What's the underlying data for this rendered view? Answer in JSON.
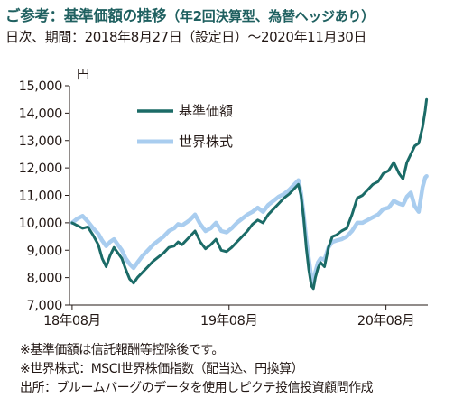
{
  "header": {
    "title": "ご参考：基準価額の推移",
    "title_paren": "（年2回決算型、為替ヘッジあり）",
    "subtitle": "日次、期間：2018年8月27日（設定日）～2020年11月30日"
  },
  "notes": [
    "※基準価額は信託報酬等控除後です。",
    "※世界株式：MSCI世界株価指数（配当込、円換算）",
    "出所：ブルームバーグのデータを使用しピクテ投信投資顧問作成"
  ],
  "colors": {
    "nav": "#1b6b67",
    "world": "#a9cdef",
    "axis": "#231815",
    "title": "#1f6060"
  },
  "chart_data": {
    "type": "line",
    "y_unit": "円",
    "ylim": [
      7000,
      15000
    ],
    "y_ticks": [
      "7,000",
      "8,000",
      "9,000",
      "10,000",
      "11,000",
      "12,000",
      "13,000",
      "14,000",
      "15,000"
    ],
    "x_ticks": [
      {
        "label": "18年08月",
        "month": 0
      },
      {
        "label": "19年08月",
        "month": 12
      },
      {
        "label": "20年08月",
        "month": 24
      }
    ],
    "x_range_months": [
      -0.2,
      27.2
    ],
    "grid": false,
    "legend": "top-left inside",
    "series": [
      {
        "name": "基準価額",
        "color": "#1b6b67",
        "points": [
          [
            0.0,
            10000
          ],
          [
            0.4,
            9900
          ],
          [
            0.8,
            9800
          ],
          [
            1.2,
            9850
          ],
          [
            1.6,
            9550
          ],
          [
            2.0,
            9200
          ],
          [
            2.3,
            8700
          ],
          [
            2.6,
            8400
          ],
          [
            2.9,
            8800
          ],
          [
            3.2,
            9100
          ],
          [
            3.5,
            8900
          ],
          [
            3.8,
            8700
          ],
          [
            4.1,
            8300
          ],
          [
            4.4,
            7950
          ],
          [
            4.7,
            7800
          ],
          [
            5.0,
            8000
          ],
          [
            5.4,
            8200
          ],
          [
            5.8,
            8400
          ],
          [
            6.2,
            8600
          ],
          [
            6.6,
            8750
          ],
          [
            7.0,
            8900
          ],
          [
            7.4,
            9100
          ],
          [
            7.8,
            9150
          ],
          [
            8.1,
            9300
          ],
          [
            8.4,
            9200
          ],
          [
            8.7,
            9350
          ],
          [
            9.0,
            9500
          ],
          [
            9.4,
            9700
          ],
          [
            9.8,
            9300
          ],
          [
            10.2,
            9050
          ],
          [
            10.6,
            9200
          ],
          [
            11.0,
            9400
          ],
          [
            11.4,
            9000
          ],
          [
            11.8,
            8950
          ],
          [
            12.2,
            9100
          ],
          [
            12.6,
            9300
          ],
          [
            13.0,
            9500
          ],
          [
            13.4,
            9700
          ],
          [
            13.8,
            9950
          ],
          [
            14.2,
            10100
          ],
          [
            14.6,
            10000
          ],
          [
            15.0,
            10300
          ],
          [
            15.4,
            10500
          ],
          [
            15.8,
            10700
          ],
          [
            16.2,
            10900
          ],
          [
            16.6,
            11050
          ],
          [
            17.0,
            11250
          ],
          [
            17.3,
            11400
          ],
          [
            17.5,
            11000
          ],
          [
            17.7,
            10200
          ],
          [
            17.9,
            9100
          ],
          [
            18.1,
            8300
          ],
          [
            18.3,
            7700
          ],
          [
            18.45,
            7600
          ],
          [
            18.6,
            8000
          ],
          [
            18.8,
            8350
          ],
          [
            19.0,
            8550
          ],
          [
            19.3,
            8400
          ],
          [
            19.6,
            9100
          ],
          [
            19.9,
            9500
          ],
          [
            20.2,
            9550
          ],
          [
            20.6,
            9700
          ],
          [
            21.0,
            9800
          ],
          [
            21.4,
            10300
          ],
          [
            21.8,
            10900
          ],
          [
            22.2,
            11000
          ],
          [
            22.6,
            11200
          ],
          [
            23.0,
            11400
          ],
          [
            23.4,
            11500
          ],
          [
            23.8,
            11800
          ],
          [
            24.2,
            11900
          ],
          [
            24.6,
            12200
          ],
          [
            25.0,
            11800
          ],
          [
            25.3,
            11600
          ],
          [
            25.6,
            12200
          ],
          [
            25.9,
            12500
          ],
          [
            26.2,
            12800
          ],
          [
            26.5,
            12900
          ],
          [
            26.8,
            13500
          ],
          [
            27.0,
            14100
          ],
          [
            27.1,
            14500
          ]
        ]
      },
      {
        "name": "世界株式",
        "color": "#a9cdef",
        "points": [
          [
            0.0,
            10000
          ],
          [
            0.4,
            10150
          ],
          [
            0.8,
            10250
          ],
          [
            1.2,
            10050
          ],
          [
            1.6,
            9800
          ],
          [
            2.0,
            9600
          ],
          [
            2.3,
            9350
          ],
          [
            2.6,
            9150
          ],
          [
            2.9,
            9300
          ],
          [
            3.2,
            9400
          ],
          [
            3.5,
            9200
          ],
          [
            3.8,
            9000
          ],
          [
            4.1,
            8700
          ],
          [
            4.4,
            8500
          ],
          [
            4.7,
            8350
          ],
          [
            5.0,
            8550
          ],
          [
            5.4,
            8800
          ],
          [
            5.8,
            9000
          ],
          [
            6.2,
            9200
          ],
          [
            6.6,
            9350
          ],
          [
            7.0,
            9500
          ],
          [
            7.4,
            9700
          ],
          [
            7.8,
            9800
          ],
          [
            8.1,
            9950
          ],
          [
            8.4,
            9900
          ],
          [
            8.7,
            10000
          ],
          [
            9.0,
            10100
          ],
          [
            9.4,
            10300
          ],
          [
            9.8,
            9950
          ],
          [
            10.2,
            9700
          ],
          [
            10.6,
            9800
          ],
          [
            11.0,
            10000
          ],
          [
            11.4,
            9700
          ],
          [
            11.8,
            9650
          ],
          [
            12.2,
            9800
          ],
          [
            12.6,
            10000
          ],
          [
            13.0,
            10150
          ],
          [
            13.4,
            10300
          ],
          [
            13.8,
            10400
          ],
          [
            14.2,
            10550
          ],
          [
            14.6,
            10400
          ],
          [
            15.0,
            10650
          ],
          [
            15.4,
            10800
          ],
          [
            15.8,
            10950
          ],
          [
            16.2,
            11050
          ],
          [
            16.6,
            11200
          ],
          [
            17.0,
            11400
          ],
          [
            17.3,
            11550
          ],
          [
            17.5,
            11100
          ],
          [
            17.7,
            10300
          ],
          [
            17.9,
            9400
          ],
          [
            18.1,
            8700
          ],
          [
            18.3,
            8000
          ],
          [
            18.45,
            7750
          ],
          [
            18.6,
            8200
          ],
          [
            18.8,
            8550
          ],
          [
            19.0,
            8700
          ],
          [
            19.3,
            8650
          ],
          [
            19.6,
            9100
          ],
          [
            19.9,
            9300
          ],
          [
            20.2,
            9350
          ],
          [
            20.6,
            9400
          ],
          [
            21.0,
            9500
          ],
          [
            21.4,
            9700
          ],
          [
            21.8,
            10000
          ],
          [
            22.2,
            10000
          ],
          [
            22.6,
            10100
          ],
          [
            23.0,
            10200
          ],
          [
            23.4,
            10300
          ],
          [
            23.8,
            10500
          ],
          [
            24.2,
            10550
          ],
          [
            24.6,
            10800
          ],
          [
            25.0,
            10700
          ],
          [
            25.3,
            10650
          ],
          [
            25.6,
            10950
          ],
          [
            25.9,
            11100
          ],
          [
            26.2,
            10600
          ],
          [
            26.5,
            10400
          ],
          [
            26.8,
            11300
          ],
          [
            27.0,
            11650
          ],
          [
            27.1,
            11700
          ]
        ]
      }
    ]
  }
}
